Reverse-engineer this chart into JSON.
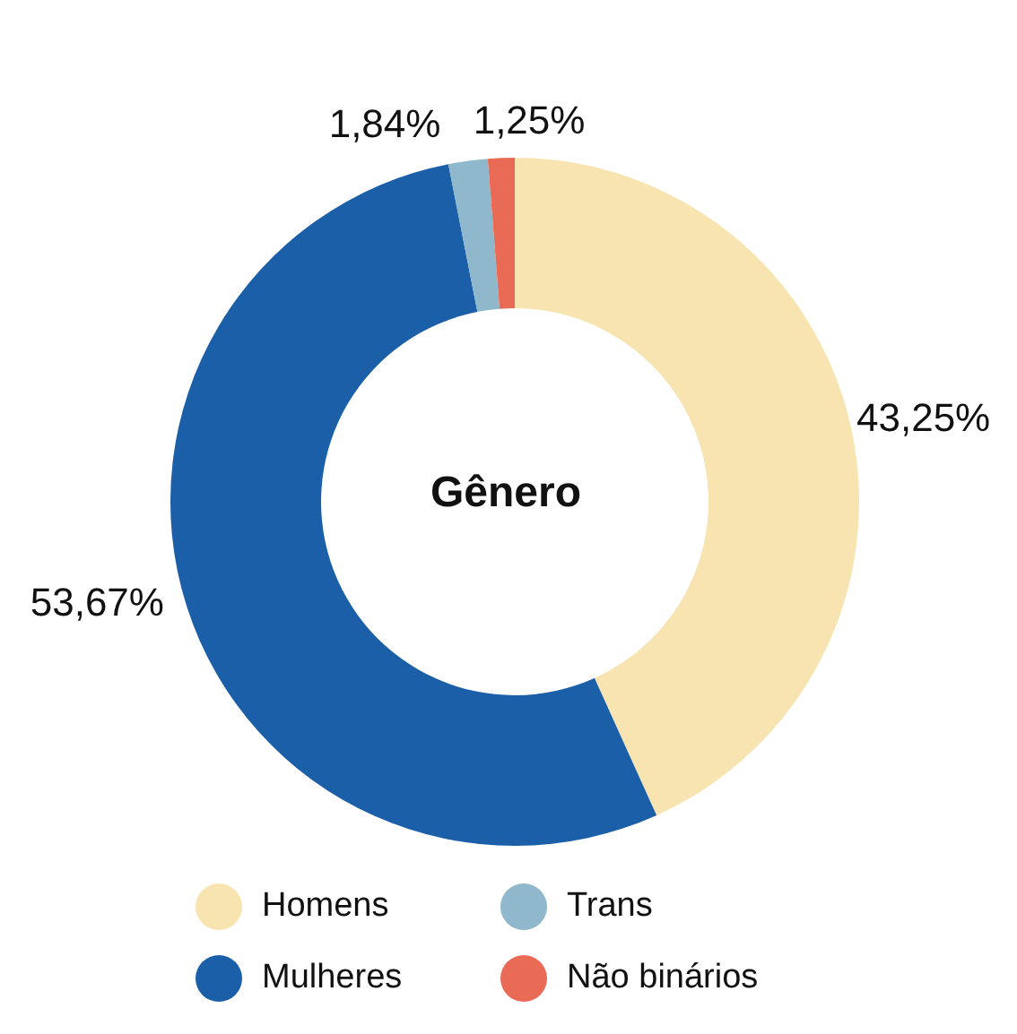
{
  "chart_data": {
    "type": "donut",
    "title": "Gênero",
    "categories": [
      "Homens",
      "Mulheres",
      "Trans",
      "Não binários"
    ],
    "values": [
      43.25,
      53.67,
      1.84,
      1.25
    ],
    "value_labels": [
      "43,25%",
      "53,67%",
      "1,84%",
      "1,25%"
    ],
    "colors": [
      "#f8e4b0",
      "#1a5fa8",
      "#8fb8cc",
      "#e96b55"
    ],
    "legend": "bottom"
  }
}
